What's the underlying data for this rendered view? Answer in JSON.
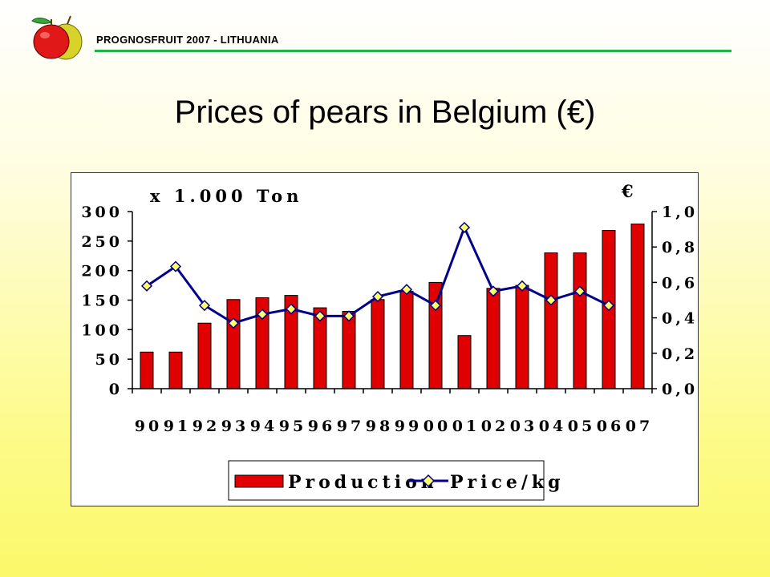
{
  "header": {
    "title": "PROGNOSFRUIT 2007 - LITHUANIA"
  },
  "slide": {
    "title": "Prices of pears in Belgium (€)"
  },
  "logo": {
    "icon": "apple-pear-icon"
  },
  "colors": {
    "accent_rule": "#22b14c",
    "bar_fill": "#e00000",
    "line_stroke": "#00008b",
    "marker_fill": "#ffff66"
  },
  "chart_data": {
    "type": "bar",
    "left_axis_unit": "x 1.000 Ton",
    "right_axis_unit": "€",
    "categories": [
      "90",
      "91",
      "92",
      "93",
      "94",
      "95",
      "96",
      "97",
      "98",
      "99",
      "00",
      "01",
      "02",
      "03",
      "04",
      "05",
      "06",
      "07"
    ],
    "left_ticks": [
      "0",
      "50",
      "100",
      "150",
      "200",
      "250",
      "300"
    ],
    "right_ticks": [
      "0,0",
      "0,2",
      "0,4",
      "0,6",
      "0,8",
      "1,0"
    ],
    "ylim_left": [
      0,
      300
    ],
    "ylim_right": [
      0,
      1.0
    ],
    "grid": false,
    "legend_position": "bottom",
    "series": [
      {
        "name": "Production",
        "kind": "bar",
        "axis": "left",
        "values": [
          62,
          62,
          111,
          151,
          154,
          158,
          137,
          131,
          151,
          165,
          180,
          90,
          170,
          175,
          230,
          230,
          268,
          279
        ]
      },
      {
        "name": "Price/kg",
        "kind": "line",
        "axis": "right",
        "values": [
          0.58,
          0.69,
          0.47,
          0.37,
          0.42,
          0.45,
          0.41,
          0.41,
          0.52,
          0.56,
          0.47,
          0.91,
          0.55,
          0.58,
          0.5,
          0.55,
          0.47,
          null
        ]
      }
    ]
  }
}
